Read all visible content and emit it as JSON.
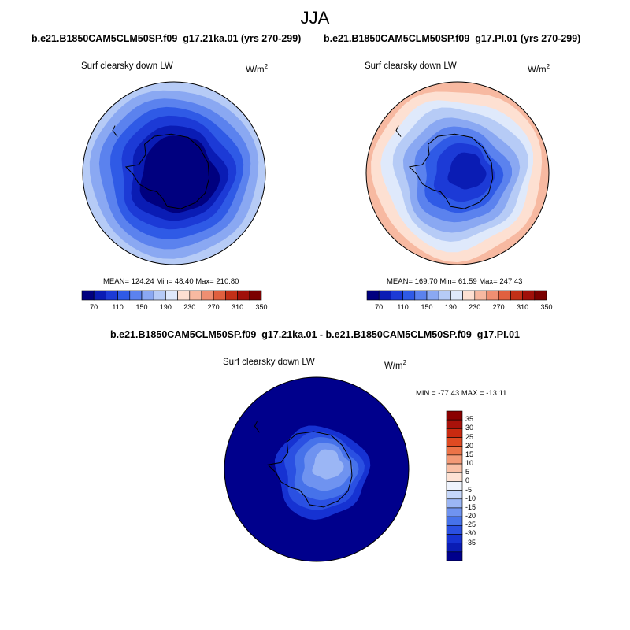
{
  "figure": {
    "season": "JJA",
    "panels": [
      {
        "case": "b.e21.B1850CAM5CLM50SP.f09_g17.21ka.01 (yrs 270-299)",
        "variable": "Surf clearsky down LW",
        "units_base": "W/m",
        "units_exp": "2",
        "stats": "MEAN= 124.24  Min=  48.40  Max= 210.80"
      },
      {
        "case": "b.e21.B1850CAM5CLM50SP.f09_g17.PI.01 (yrs 270-299)",
        "variable": "Surf clearsky down LW",
        "units_base": "W/m",
        "units_exp": "2",
        "stats": "MEAN= 169.70  Min=  61.59  Max= 247.43"
      }
    ],
    "diff_panel": {
      "case": "b.e21.B1850CAM5CLM50SP.f09_g17.21ka.01 - b.e21.B1850CAM5CLM50SP.f09_g17.PI.01",
      "variable": "Surf clearsky down LW",
      "units_base": "W/m",
      "units_exp": "2",
      "stats": "MIN = -77.43 MAX = -13.11"
    }
  },
  "colors": {
    "abs_levels": [
      "#00007f",
      "#0a1cb4",
      "#1c3ad6",
      "#2f5ae6",
      "#5b82ee",
      "#8aa8f2",
      "#b6cbf6",
      "#dfe9fb",
      "#fde0d2",
      "#f7b9a1",
      "#ef8f72",
      "#e0603f",
      "#c23018",
      "#a0100a",
      "#7b0000"
    ],
    "diff_levels": [
      "#00008c",
      "#0a1cb4",
      "#1632d2",
      "#2a50e2",
      "#4672ea",
      "#6f93f0",
      "#9bb6f5",
      "#c6d7fa",
      "#eef3fd",
      "#fde2d4",
      "#f9c0a6",
      "#f39a77",
      "#ec7348",
      "#df4a22",
      "#c92a10",
      "#a8120a",
      "#8a0000"
    ],
    "coast": "#000000"
  },
  "chart_data": [
    {
      "type": "polar-map",
      "title": "b.e21.B1850CAM5CLM50SP.f09_g17.21ka.01 (yrs 270-299)",
      "field": "Surf clearsky down LW",
      "units": "W/m2",
      "mean": 124.24,
      "min": 48.4,
      "max": 210.8,
      "colorbar_ticks": [
        "70",
        "110",
        "150",
        "190",
        "230",
        "270",
        "310",
        "350"
      ],
      "colorbar_levels": [
        50,
        70,
        90,
        110,
        130,
        150,
        170,
        190,
        210,
        230,
        250,
        270,
        290,
        310,
        330,
        350
      ],
      "contour_levels_shown": [
        70,
        90,
        110,
        130,
        150,
        170,
        190,
        210
      ],
      "level_index_by_ring": [
        0,
        1,
        2,
        3,
        4,
        5,
        6
      ]
    },
    {
      "type": "polar-map",
      "title": "b.e21.B1850CAM5CLM50SP.f09_g17.PI.01 (yrs 270-299)",
      "field": "Surf clearsky down LW",
      "units": "W/m2",
      "mean": 169.7,
      "min": 61.59,
      "max": 247.43,
      "colorbar_ticks": [
        "70",
        "110",
        "150",
        "190",
        "230",
        "270",
        "310",
        "350"
      ],
      "colorbar_levels": [
        50,
        70,
        90,
        110,
        130,
        150,
        170,
        190,
        210,
        230,
        250,
        270,
        290,
        310,
        330,
        350
      ],
      "level_index_by_ring": [
        1,
        2,
        3,
        4,
        5,
        6,
        7,
        8,
        9
      ]
    },
    {
      "type": "polar-map",
      "title": "b.e21.B1850CAM5CLM50SP.f09_g17.21ka.01 - b.e21.B1850CAM5CLM50SP.f09_g17.PI.01",
      "field": "Surf clearsky down LW",
      "units": "W/m2",
      "min": -77.43,
      "max": -13.11,
      "colorbar_ticks": [
        "35",
        "30",
        "25",
        "20",
        "15",
        "10",
        "5",
        "0",
        "-5",
        "-10",
        "-15",
        "-20",
        "-25",
        "-30",
        "-35"
      ],
      "level_index_by_ring": [
        0,
        1,
        2,
        3,
        4,
        5
      ]
    }
  ]
}
